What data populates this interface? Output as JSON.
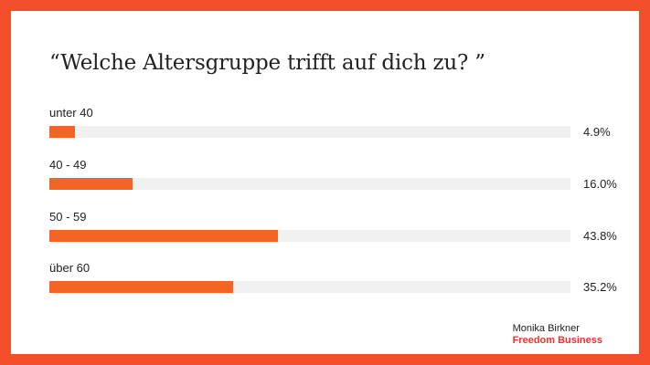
{
  "colors": {
    "frame": "#f24f2a",
    "bar": "#f26423",
    "track": "#f0f0f0",
    "brand": "#f2312a"
  },
  "chart_data": {
    "type": "bar",
    "orientation": "horizontal",
    "title": "“Welche Altersgruppe trifft auf dich zu? ”",
    "categories": [
      "unter 40",
      "40 - 49",
      "50 - 59",
      "über 60"
    ],
    "values": [
      4.9,
      16.0,
      43.8,
      35.2
    ],
    "value_labels": [
      "4.9%",
      "16.0%",
      "43.8%",
      "35.2%"
    ],
    "unit": "%",
    "xlim": [
      0,
      100
    ],
    "grid": false
  },
  "footer": {
    "author": "Monika Birkner",
    "brand": "Freedom Business"
  }
}
